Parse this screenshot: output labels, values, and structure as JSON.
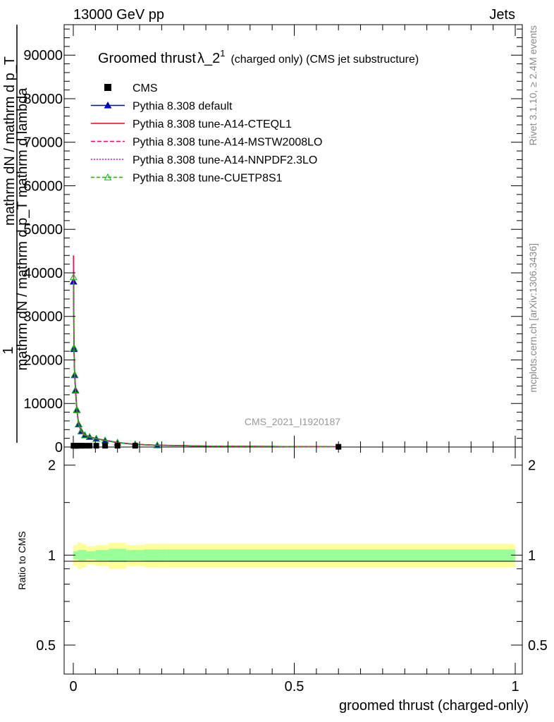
{
  "header": {
    "left": "13000 GeV pp",
    "right": "Jets"
  },
  "title": {
    "main": "Groomed thrust",
    "symbol": "λ_2",
    "superscript": "1",
    "extra": "(charged only) (CMS jet substructure)"
  },
  "side": {
    "rivet": "Rivet 3.1.10, ≥ 2.4M events",
    "mcplots": "mcplots.cern.ch [arXiv:1306.3436]"
  },
  "watermark": "CMS_2021_I1920187",
  "ylabel": {
    "numerator": "1",
    "line1": "mathrm dN / mathrm d p_T mathrm d lambda",
    "line2": "mathrm dN / mathrm d p_T"
  },
  "ratio_ylabel": "Ratio to CMS",
  "xlabel": "groomed thrust (charged-only)",
  "colors": {
    "cms": "#000000",
    "default": "#0000cc",
    "cteql1": "#ff0000",
    "mstw": "#ff0066",
    "nnpdf": "#ff00cc",
    "cuetp8s1": "#00bb00",
    "band_outer": "#ffff99",
    "band_inner": "#99ff99"
  },
  "chart_data": {
    "type": "line",
    "x_range": [
      0,
      1
    ],
    "main_y_range": [
      0,
      97000
    ],
    "ratio_y_range": [
      0.4,
      2.3
    ],
    "grid": false,
    "legend_position": "top-left",
    "x_ticks": [
      {
        "v": 0,
        "label": "0"
      },
      {
        "v": 0.5,
        "label": "0.5"
      },
      {
        "v": 1,
        "label": "1"
      }
    ],
    "main_y_ticks": [
      {
        "v": 10000,
        "label": "10000"
      },
      {
        "v": 20000,
        "label": "20000"
      },
      {
        "v": 30000,
        "label": "30000"
      },
      {
        "v": 40000,
        "label": "40000"
      },
      {
        "v": 50000,
        "label": "50000"
      },
      {
        "v": 60000,
        "label": "60000"
      },
      {
        "v": 70000,
        "label": "70000"
      },
      {
        "v": 80000,
        "label": "80000"
      },
      {
        "v": 90000,
        "label": "90000"
      }
    ],
    "main_y_zero_label": "0",
    "ratio_y_ticks": [
      {
        "v": 0.5,
        "label": "0.5"
      },
      {
        "v": 1,
        "label": "1"
      },
      {
        "v": 2,
        "label": "2"
      }
    ],
    "x": [
      0.0005,
      0.0015,
      0.003,
      0.005,
      0.008,
      0.012,
      0.018,
      0.026,
      0.037,
      0.052,
      0.072,
      0.1,
      0.14,
      0.19,
      0.25,
      0.3,
      0.4,
      0.5,
      0.6
    ],
    "cms_values": [
      300,
      300,
      300,
      300,
      300,
      300,
      300,
      300,
      300,
      300,
      300,
      300,
      300,
      300,
      300,
      200,
      150,
      100,
      50
    ],
    "series": [
      {
        "name": "Pythia 8.308 default",
        "color": "#0000cc",
        "dash": "",
        "marker": "triangle-filled",
        "values": [
          38000,
          22500,
          16500,
          13000,
          8500,
          5200,
          3600,
          2700,
          2300,
          1900,
          1500,
          1000,
          600,
          400,
          300,
          200,
          150,
          100,
          50
        ]
      },
      {
        "name": "Pythia 8.308 tune-A14-CTEQL1",
        "color": "#ff0000",
        "dash": "",
        "marker": "none",
        "values": [
          44000,
          23500,
          17000,
          13600,
          8800,
          5400,
          3700,
          2800,
          2350,
          1950,
          1550,
          1050,
          620,
          420,
          310,
          210,
          150,
          100,
          50
        ]
      },
      {
        "name": "Pythia 8.308 tune-A14-MSTW2008LO",
        "color": "#ff0066",
        "dash": "6,3",
        "marker": "none",
        "values": [
          43500,
          23200,
          16900,
          13500,
          8700,
          5350,
          3650,
          2780,
          2330,
          1930,
          1530,
          1040,
          610,
          410,
          305,
          205,
          150,
          100,
          50
        ]
      },
      {
        "name": "Pythia 8.308 tune-A14-NNPDF2.3LO",
        "color": "#ff00cc",
        "dash": "2,2",
        "marker": "none",
        "values": [
          42000,
          23000,
          16800,
          13400,
          8650,
          5300,
          3620,
          2760,
          2320,
          1920,
          1520,
          1030,
          605,
          405,
          302,
          202,
          150,
          100,
          50
        ]
      },
      {
        "name": "Pythia 8.308 tune-CUETP8S1",
        "color": "#00bb00",
        "dash": "5,3",
        "marker": "triangle-open",
        "values": [
          39000,
          22800,
          16600,
          13100,
          8600,
          5250,
          3600,
          2700,
          2300,
          1900,
          1500,
          1000,
          600,
          400,
          300,
          200,
          150,
          100,
          50
        ]
      }
    ],
    "ratio_band_edges": [
      0.0,
      0.01,
      0.02,
      0.03,
      0.05,
      0.08,
      0.12,
      0.16,
      0.21,
      1.0
    ],
    "ratio_band_outer": [
      [
        0.92,
        1.08
      ],
      [
        0.9,
        1.1
      ],
      [
        0.91,
        1.09
      ],
      [
        0.93,
        1.07
      ],
      [
        0.92,
        1.08
      ],
      [
        0.9,
        1.1
      ],
      [
        0.92,
        1.08
      ],
      [
        0.91,
        1.09
      ],
      [
        0.91,
        1.09
      ]
    ],
    "ratio_band_inner": [
      [
        0.97,
        1.03
      ],
      [
        0.96,
        1.04
      ],
      [
        0.96,
        1.04
      ],
      [
        0.97,
        1.03
      ],
      [
        0.96,
        1.04
      ],
      [
        0.95,
        1.05
      ],
      [
        0.96,
        1.04
      ],
      [
        0.955,
        1.045
      ],
      [
        0.955,
        1.045
      ]
    ]
  }
}
